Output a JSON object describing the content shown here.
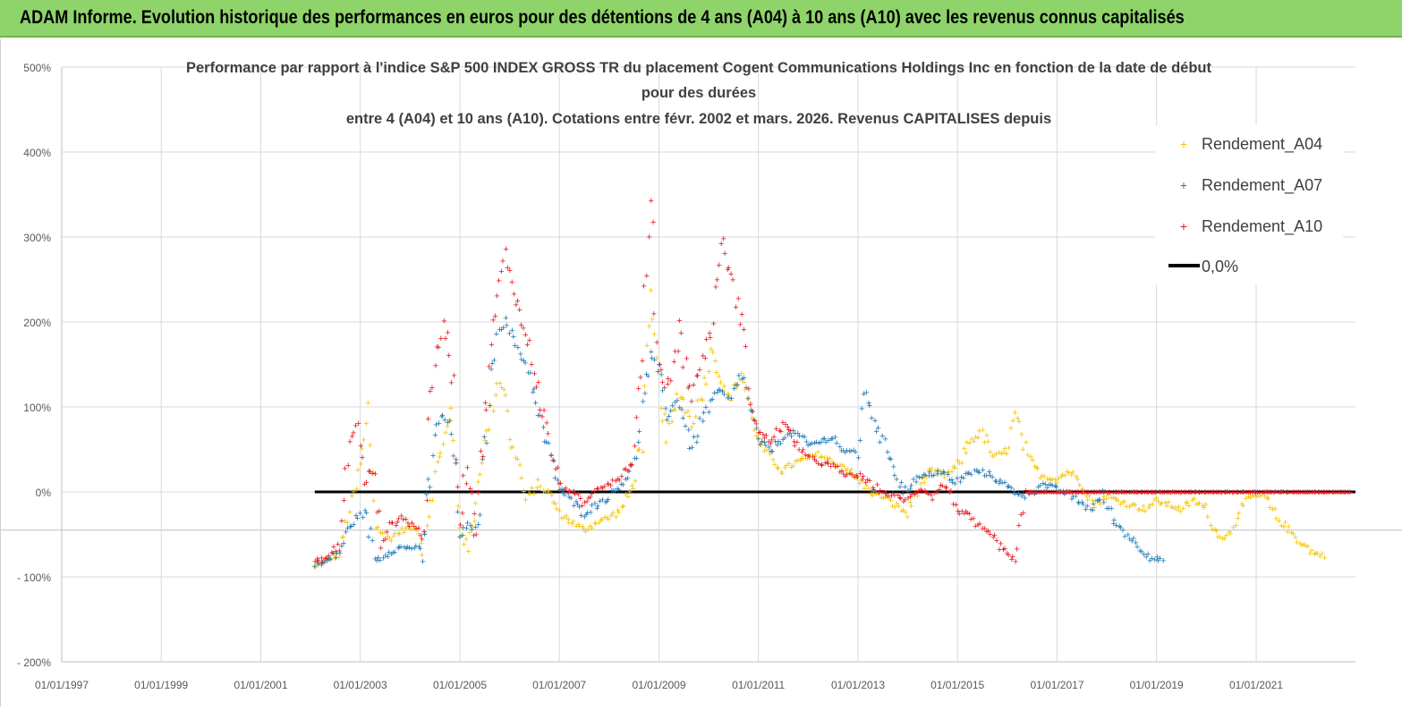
{
  "banner": {
    "text": "ADAM Informe. Evolution historique des performances en euros pour des détentions de 4 ans (A04) à 10 ans (A10) avec les revenus connus capitalisés"
  },
  "colors": {
    "banner_bg": "#8fd46a",
    "a04": "#f5c400",
    "a07": "#1f77b4",
    "a10": "#e8141c",
    "zero": "#000000",
    "grid": "#d9d9d9"
  },
  "chart_data": {
    "type": "scatter",
    "title_lines": [
      "Performance par rapport à l'indice S&P 500 INDEX GROSS TR  du placement Cogent Communications Holdings Inc en fonction de la date de début",
      "pour des durées",
      "entre 4 (A04) et 10 ans (A10). Cotations entre févr. 2002 et mars. 2026. Revenus CAPITALISES depuis"
    ],
    "x_axis": {
      "type": "date",
      "min": "1997-01-01",
      "max": "2022-12-31",
      "tick_labels": [
        "01/01/1997",
        "01/01/1999",
        "01/01/2001",
        "01/01/2003",
        "01/01/2005",
        "01/01/2007",
        "01/01/2009",
        "01/01/2011",
        "01/01/2013",
        "01/01/2015",
        "01/01/2017",
        "01/01/2019",
        "01/01/2021"
      ]
    },
    "y_axis": {
      "min": -200,
      "max": 500,
      "unit": "%",
      "tick_labels": [
        "- 200%",
        "- 100%",
        "0%",
        "100%",
        "200%",
        "300%",
        "400%",
        "500%"
      ]
    },
    "grid": true,
    "legend_position": "top-right",
    "legend": [
      "Rendement_A04",
      "Rendement_A07",
      "Rendement_A10",
      "0,0%"
    ],
    "series": [
      {
        "name": "Rendement_A04",
        "color": "#f5c400",
        "points": [
          [
            "2002-02-01",
            -88
          ],
          [
            "2002-05-01",
            -80
          ],
          [
            "2002-08-01",
            -72
          ],
          [
            "2002-10-01",
            -30
          ],
          [
            "2002-12-01",
            5
          ],
          [
            "2003-02-01",
            60
          ],
          [
            "2003-03-01",
            95
          ],
          [
            "2003-05-01",
            -40
          ],
          [
            "2003-08-01",
            -55
          ],
          [
            "2003-11-01",
            -45
          ],
          [
            "2004-02-01",
            -40
          ],
          [
            "2004-04-01",
            -60
          ],
          [
            "2004-07-01",
            20
          ],
          [
            "2004-09-01",
            60
          ],
          [
            "2004-11-01",
            90
          ],
          [
            "2005-01-01",
            -40
          ],
          [
            "2005-03-01",
            -70
          ],
          [
            "2005-05-01",
            -10
          ],
          [
            "2005-06-01",
            30
          ],
          [
            "2005-08-01",
            80
          ],
          [
            "2005-10-01",
            130
          ],
          [
            "2005-12-01",
            120
          ],
          [
            "2006-01-01",
            60
          ],
          [
            "2006-03-01",
            40
          ],
          [
            "2006-05-01",
            -10
          ],
          [
            "2006-08-01",
            10
          ],
          [
            "2006-11-01",
            -5
          ],
          [
            "2007-01-01",
            -25
          ],
          [
            "2007-04-01",
            -35
          ],
          [
            "2007-07-01",
            -45
          ],
          [
            "2007-10-01",
            -35
          ],
          [
            "2008-01-01",
            -30
          ],
          [
            "2008-04-01",
            -20
          ],
          [
            "2008-07-01",
            10
          ],
          [
            "2008-09-01",
            70
          ],
          [
            "2008-11-01",
            220
          ],
          [
            "2009-01-01",
            130
          ],
          [
            "2009-03-01",
            60
          ],
          [
            "2009-06-01",
            120
          ],
          [
            "2009-09-01",
            80
          ],
          [
            "2009-11-01",
            110
          ],
          [
            "2010-02-01",
            170
          ],
          [
            "2010-04-01",
            130
          ],
          [
            "2010-06-01",
            110
          ],
          [
            "2010-09-01",
            140
          ],
          [
            "2010-11-01",
            100
          ],
          [
            "2011-01-01",
            60
          ],
          [
            "2011-04-01",
            40
          ],
          [
            "2011-07-01",
            25
          ],
          [
            "2011-10-01",
            35
          ],
          [
            "2012-01-01",
            40
          ],
          [
            "2012-04-01",
            45
          ],
          [
            "2012-07-01",
            35
          ],
          [
            "2012-10-01",
            30
          ],
          [
            "2013-01-01",
            15
          ],
          [
            "2013-04-01",
            0
          ],
          [
            "2013-07-01",
            -5
          ],
          [
            "2013-10-01",
            -15
          ],
          [
            "2014-01-01",
            -25
          ],
          [
            "2014-04-01",
            10
          ],
          [
            "2014-07-01",
            25
          ],
          [
            "2014-10-01",
            20
          ],
          [
            "2015-01-01",
            30
          ],
          [
            "2015-04-01",
            60
          ],
          [
            "2015-07-01",
            70
          ],
          [
            "2015-10-01",
            40
          ],
          [
            "2016-01-01",
            50
          ],
          [
            "2016-03-01",
            90
          ],
          [
            "2016-06-01",
            40
          ],
          [
            "2016-09-01",
            20
          ],
          [
            "2017-01-01",
            15
          ],
          [
            "2017-04-01",
            25
          ],
          [
            "2017-07-01",
            10
          ],
          [
            "2017-10-01",
            -15
          ],
          [
            "2018-01-01",
            -5
          ],
          [
            "2018-04-01",
            -10
          ],
          [
            "2018-07-01",
            -15
          ],
          [
            "2018-10-01",
            -20
          ],
          [
            "2019-01-01",
            -10
          ],
          [
            "2019-04-01",
            -15
          ],
          [
            "2019-07-01",
            -20
          ],
          [
            "2019-10-01",
            -10
          ],
          [
            "2020-01-01",
            -20
          ],
          [
            "2020-03-01",
            -45
          ],
          [
            "2020-06-01",
            -55
          ],
          [
            "2020-09-01",
            -20
          ],
          [
            "2020-12-01",
            -5
          ],
          [
            "2021-03-01",
            -5
          ],
          [
            "2021-06-01",
            -30
          ],
          [
            "2021-09-01",
            -45
          ],
          [
            "2021-12-01",
            -60
          ],
          [
            "2022-03-01",
            -72
          ],
          [
            "2022-06-01",
            -75
          ]
        ]
      },
      {
        "name": "Rendement_A07",
        "color": "#1f77b4",
        "points": [
          [
            "2002-02-01",
            -85
          ],
          [
            "2002-05-01",
            -82
          ],
          [
            "2002-08-01",
            -70
          ],
          [
            "2002-10-01",
            -45
          ],
          [
            "2002-12-01",
            -30
          ],
          [
            "2003-02-01",
            -25
          ],
          [
            "2003-05-01",
            -80
          ],
          [
            "2003-08-01",
            -70
          ],
          [
            "2003-11-01",
            -65
          ],
          [
            "2004-02-01",
            -65
          ],
          [
            "2004-04-01",
            -70
          ],
          [
            "2004-07-01",
            70
          ],
          [
            "2004-09-01",
            90
          ],
          [
            "2004-11-01",
            75
          ],
          [
            "2005-01-01",
            -50
          ],
          [
            "2005-03-01",
            -40
          ],
          [
            "2005-05-01",
            -50
          ],
          [
            "2005-06-01",
            -10
          ],
          [
            "2005-08-01",
            110
          ],
          [
            "2005-10-01",
            190
          ],
          [
            "2005-12-01",
            200
          ],
          [
            "2006-02-01",
            180
          ],
          [
            "2006-04-01",
            160
          ],
          [
            "2006-06-01",
            140
          ],
          [
            "2006-08-01",
            90
          ],
          [
            "2006-11-01",
            40
          ],
          [
            "2007-01-01",
            5
          ],
          [
            "2007-04-01",
            -10
          ],
          [
            "2007-07-01",
            -25
          ],
          [
            "2007-10-01",
            -15
          ],
          [
            "2008-01-01",
            -5
          ],
          [
            "2008-04-01",
            10
          ],
          [
            "2008-07-01",
            30
          ],
          [
            "2008-09-01",
            100
          ],
          [
            "2008-11-01",
            160
          ],
          [
            "2009-01-01",
            140
          ],
          [
            "2009-03-01",
            90
          ],
          [
            "2009-06-01",
            110
          ],
          [
            "2009-09-01",
            50
          ],
          [
            "2009-11-01",
            80
          ],
          [
            "2010-02-01",
            110
          ],
          [
            "2010-04-01",
            120
          ],
          [
            "2010-06-01",
            105
          ],
          [
            "2010-09-01",
            140
          ],
          [
            "2010-11-01",
            100
          ],
          [
            "2011-01-01",
            60
          ],
          [
            "2011-04-01",
            50
          ],
          [
            "2011-07-01",
            65
          ],
          [
            "2011-10-01",
            70
          ],
          [
            "2012-01-01",
            55
          ],
          [
            "2012-04-01",
            60
          ],
          [
            "2012-07-01",
            65
          ],
          [
            "2012-10-01",
            45
          ],
          [
            "2013-01-01",
            50
          ],
          [
            "2013-03-01",
            120
          ],
          [
            "2013-06-01",
            70
          ],
          [
            "2013-09-01",
            40
          ],
          [
            "2013-12-01",
            0
          ],
          [
            "2014-03-01",
            15
          ],
          [
            "2014-06-01",
            20
          ],
          [
            "2014-09-01",
            25
          ],
          [
            "2014-12-01",
            10
          ],
          [
            "2015-03-01",
            20
          ],
          [
            "2015-06-01",
            25
          ],
          [
            "2015-09-01",
            20
          ],
          [
            "2015-12-01",
            10
          ],
          [
            "2016-03-01",
            0
          ],
          [
            "2016-06-01",
            -5
          ],
          [
            "2016-09-01",
            10
          ],
          [
            "2016-12-01",
            5
          ],
          [
            "2017-03-01",
            0
          ],
          [
            "2017-06-01",
            -10
          ],
          [
            "2017-09-01",
            -20
          ],
          [
            "2017-12-01",
            -5
          ],
          [
            "2018-03-01",
            -35
          ],
          [
            "2018-06-01",
            -50
          ],
          [
            "2018-09-01",
            -65
          ],
          [
            "2018-12-01",
            -78
          ],
          [
            "2019-03-01",
            -80
          ]
        ]
      },
      {
        "name": "Rendement_A10",
        "color": "#e8141c",
        "points": [
          [
            "2002-02-01",
            -82
          ],
          [
            "2002-05-01",
            -78
          ],
          [
            "2002-08-01",
            -60
          ],
          [
            "2002-10-01",
            40
          ],
          [
            "2002-12-01",
            90
          ],
          [
            "2003-02-01",
            10
          ],
          [
            "2003-04-01",
            30
          ],
          [
            "2003-06-01",
            -60
          ],
          [
            "2003-08-01",
            -40
          ],
          [
            "2003-11-01",
            -30
          ],
          [
            "2004-02-01",
            -40
          ],
          [
            "2004-04-01",
            -50
          ],
          [
            "2004-07-01",
            150
          ],
          [
            "2004-09-01",
            200
          ],
          [
            "2004-11-01",
            160
          ],
          [
            "2005-01-01",
            -30
          ],
          [
            "2005-03-01",
            40
          ],
          [
            "2005-05-01",
            -40
          ],
          [
            "2005-06-01",
            30
          ],
          [
            "2005-08-01",
            150
          ],
          [
            "2005-10-01",
            230
          ],
          [
            "2005-12-01",
            280
          ],
          [
            "2006-02-01",
            240
          ],
          [
            "2006-04-01",
            200
          ],
          [
            "2006-06-01",
            170
          ],
          [
            "2006-08-01",
            120
          ],
          [
            "2006-11-01",
            50
          ],
          [
            "2007-01-01",
            10
          ],
          [
            "2007-04-01",
            0
          ],
          [
            "2007-07-01",
            -15
          ],
          [
            "2007-10-01",
            5
          ],
          [
            "2008-01-01",
            10
          ],
          [
            "2008-04-01",
            20
          ],
          [
            "2008-07-01",
            40
          ],
          [
            "2008-09-01",
            180
          ],
          [
            "2008-11-01",
            330
          ],
          [
            "2009-01-01",
            150
          ],
          [
            "2009-03-01",
            120
          ],
          [
            "2009-06-01",
            190
          ],
          [
            "2009-09-01",
            110
          ],
          [
            "2009-11-01",
            150
          ],
          [
            "2010-02-01",
            200
          ],
          [
            "2010-04-01",
            300
          ],
          [
            "2010-06-01",
            260
          ],
          [
            "2010-09-01",
            200
          ],
          [
            "2010-11-01",
            110
          ],
          [
            "2011-01-01",
            70
          ],
          [
            "2011-04-01",
            60
          ],
          [
            "2011-07-01",
            80
          ],
          [
            "2011-10-01",
            60
          ],
          [
            "2012-01-01",
            40
          ],
          [
            "2012-04-01",
            35
          ],
          [
            "2012-07-01",
            30
          ],
          [
            "2012-10-01",
            20
          ],
          [
            "2013-01-01",
            20
          ],
          [
            "2013-04-01",
            10
          ],
          [
            "2013-07-01",
            0
          ],
          [
            "2013-10-01",
            -5
          ],
          [
            "2014-01-01",
            -10
          ],
          [
            "2014-04-01",
            5
          ],
          [
            "2014-07-01",
            -5
          ],
          [
            "2014-10-01",
            10
          ],
          [
            "2015-01-01",
            -20
          ],
          [
            "2015-04-01",
            -30
          ],
          [
            "2015-07-01",
            -45
          ],
          [
            "2015-10-01",
            -55
          ],
          [
            "2016-01-01",
            -75
          ],
          [
            "2016-03-01",
            -78
          ],
          [
            "2016-06-01",
            0
          ],
          [
            "2017-01-01",
            0
          ],
          [
            "2018-01-01",
            0
          ],
          [
            "2019-01-01",
            0
          ],
          [
            "2020-01-01",
            0
          ],
          [
            "2021-01-01",
            0
          ],
          [
            "2022-01-01",
            0
          ],
          [
            "2022-12-01",
            0
          ]
        ]
      },
      {
        "name": "0,0%",
        "color": "#000000",
        "points": [
          [
            "2002-02-01",
            0
          ],
          [
            "2022-12-31",
            0
          ]
        ]
      }
    ]
  }
}
